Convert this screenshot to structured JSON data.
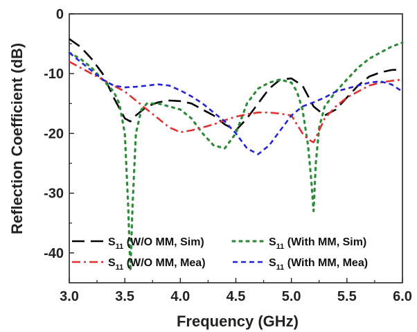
{
  "chart_data": {
    "type": "line",
    "xlabel": "Frequency (GHz)",
    "ylabel": "Reflection Coefficient (dB)",
    "xlim": [
      3.0,
      6.0
    ],
    "ylim": [
      -45,
      0
    ],
    "x_ticks": [
      "3.0",
      "3.5",
      "4.0",
      "4.5",
      "5.0",
      "5.5",
      "6.0"
    ],
    "y_ticks": [
      "0",
      "-10",
      "-20",
      "-30",
      "-40"
    ],
    "grid": false,
    "legend_position": "bottom-inside",
    "series": [
      {
        "name": "S11 (W/O MM, Sim)",
        "legend_main": "S",
        "legend_sub": "11",
        "legend_rest": " (W/O MM, Sim)",
        "color": "#000000",
        "dash": "18,9",
        "x": [
          3.0,
          3.1,
          3.2,
          3.3,
          3.4,
          3.5,
          3.55,
          3.6,
          3.7,
          3.8,
          3.9,
          4.0,
          4.1,
          4.2,
          4.3,
          4.4,
          4.5,
          4.6,
          4.7,
          4.8,
          4.9,
          5.0,
          5.1,
          5.2,
          5.3,
          5.4,
          5.5,
          5.6,
          5.7,
          5.8,
          5.9,
          6.0
        ],
        "y": [
          -4.2,
          -5.5,
          -7.5,
          -10.0,
          -14.0,
          -17.5,
          -18.0,
          -17.0,
          -15.5,
          -14.8,
          -14.5,
          -14.6,
          -15.0,
          -16.0,
          -17.0,
          -18.5,
          -19.5,
          -17.5,
          -15.0,
          -12.5,
          -11.0,
          -10.8,
          -12.0,
          -15.5,
          -17.0,
          -16.0,
          -14.0,
          -12.0,
          -10.5,
          -9.8,
          -9.4,
          -9.3
        ]
      },
      {
        "name": "S11 (With MM, Sim)",
        "legend_main": "S",
        "legend_sub": "11",
        "legend_rest": " (With MM, Sim)",
        "color": "#2e8b3a",
        "dash": "3,7",
        "x": [
          3.0,
          3.1,
          3.2,
          3.3,
          3.4,
          3.45,
          3.5,
          3.53,
          3.55,
          3.57,
          3.6,
          3.65,
          3.7,
          3.8,
          3.9,
          4.0,
          4.1,
          4.2,
          4.3,
          4.4,
          4.5,
          4.6,
          4.7,
          4.8,
          4.9,
          5.0,
          5.05,
          5.1,
          5.15,
          5.18,
          5.2,
          5.22,
          5.25,
          5.3,
          5.4,
          5.5,
          5.6,
          5.7,
          5.8,
          5.9,
          6.0
        ],
        "y": [
          -6.5,
          -7.5,
          -9.0,
          -11.0,
          -13.0,
          -15.0,
          -20.0,
          -32.0,
          -43.0,
          -32.0,
          -20.0,
          -16.0,
          -15.0,
          -15.0,
          -15.5,
          -16.0,
          -17.5,
          -20.0,
          -22.0,
          -22.5,
          -20.0,
          -15.0,
          -12.5,
          -11.5,
          -11.0,
          -11.5,
          -13.0,
          -16.0,
          -22.0,
          -28.0,
          -33.0,
          -25.0,
          -19.0,
          -15.5,
          -13.0,
          -11.0,
          -9.0,
          -7.5,
          -6.5,
          -5.5,
          -4.8
        ]
      },
      {
        "name": "S11 (W/O MM, Mea)",
        "legend_main": "S",
        "legend_sub": "11",
        "legend_rest": " (W/O MM, Mea)",
        "color": "#e03030",
        "dash": "12,5,3,5",
        "x": [
          3.0,
          3.1,
          3.2,
          3.3,
          3.4,
          3.5,
          3.6,
          3.7,
          3.8,
          3.9,
          4.0,
          4.1,
          4.2,
          4.3,
          4.4,
          4.5,
          4.6,
          4.7,
          4.8,
          4.9,
          5.0,
          5.1,
          5.15,
          5.2,
          5.3,
          5.4,
          5.5,
          5.6,
          5.7,
          5.8,
          5.9,
          6.0
        ],
        "y": [
          -8.0,
          -9.0,
          -10.0,
          -11.0,
          -12.0,
          -13.0,
          -14.5,
          -16.0,
          -17.5,
          -19.0,
          -19.8,
          -19.5,
          -19.0,
          -18.5,
          -17.8,
          -17.2,
          -16.8,
          -16.5,
          -16.5,
          -16.7,
          -17.0,
          -20.0,
          -21.0,
          -21.5,
          -17.5,
          -15.5,
          -14.0,
          -13.0,
          -12.0,
          -11.5,
          -11.2,
          -11.0
        ]
      },
      {
        "name": "S11 (With MM, Mea)",
        "legend_main": "S",
        "legend_sub": "11",
        "legend_rest": " (With MM, Mea)",
        "color": "#2323d6",
        "dash": "7,5",
        "x": [
          3.0,
          3.1,
          3.2,
          3.3,
          3.4,
          3.5,
          3.6,
          3.7,
          3.8,
          3.9,
          4.0,
          4.1,
          4.2,
          4.3,
          4.4,
          4.5,
          4.6,
          4.7,
          4.8,
          4.9,
          5.0,
          5.1,
          5.2,
          5.3,
          5.4,
          5.5,
          5.6,
          5.7,
          5.8,
          5.9,
          6.0
        ],
        "y": [
          -6.5,
          -8.0,
          -9.5,
          -11.0,
          -12.0,
          -12.3,
          -12.2,
          -12.0,
          -11.8,
          -12.0,
          -12.8,
          -13.8,
          -15.0,
          -16.5,
          -18.0,
          -20.0,
          -22.5,
          -23.5,
          -22.0,
          -19.5,
          -17.0,
          -15.5,
          -14.8,
          -14.0,
          -13.0,
          -12.5,
          -12.0,
          -11.5,
          -11.3,
          -11.8,
          -13.0
        ]
      }
    ]
  }
}
